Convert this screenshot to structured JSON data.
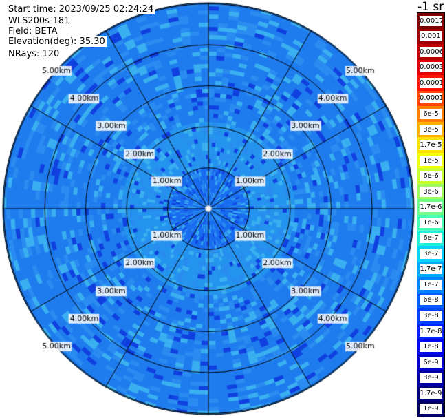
{
  "header": {
    "start_time": "Start time: 2023/09/25 02:24:24",
    "instrument": "WLS200s-181",
    "field": "Field: BETA",
    "elevation": "Elevation(deg): 35.30",
    "nrays": "NRays: 120"
  },
  "colorbar": {
    "title": "-1 sr",
    "ticks": [
      "0.0017",
      "0.001",
      "0.0006",
      "0.0003",
      "0.00017",
      "0.0001",
      "6e-5",
      "3e-5",
      "1.7e-5",
      "1e-5",
      "6e-6",
      "3e-6",
      "1.7e-6",
      "1e-6",
      "6e-7",
      "3e-7",
      "1.7e-7",
      "1e-7",
      "6e-8",
      "3e-8",
      "1.7e-8",
      "1e-8",
      "6e-9",
      "3e-9",
      "1.7e-9",
      "1e-9"
    ],
    "colors": [
      "#7f0000",
      "#9c0000",
      "#bf0000",
      "#e00000",
      "#ff1500",
      "#ff4a00",
      "#ff7e00",
      "#ffb000",
      "#ffe000",
      "#f2ff0a",
      "#c8ff33",
      "#9dff5e",
      "#72ff89",
      "#4affb3",
      "#22f0dc",
      "#0ad2ff",
      "#00a8ff",
      "#0084ff",
      "#0060ff",
      "#0040ff",
      "#0020ff",
      "#0008f0",
      "#0000cc",
      "#0000a4",
      "#00007f",
      "#000060"
    ]
  },
  "range_ring_labels": [
    "1.00km",
    "2.00km",
    "3.00km",
    "4.00km",
    "5.00km"
  ],
  "palette": {
    "inner": "#1a6cf0",
    "middle": "#2594ee",
    "outer": "#1f7cee",
    "speckle_light": "#3ab0f0",
    "speckle_dark": "#1040e0",
    "grid": "#000000"
  }
}
